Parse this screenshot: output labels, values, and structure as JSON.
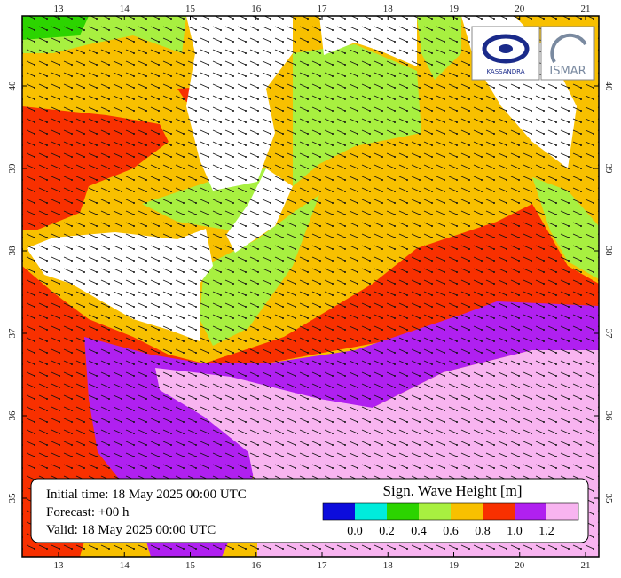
{
  "map": {
    "lon_ticks": [
      13,
      14,
      15,
      16,
      17,
      18,
      19,
      20,
      21
    ],
    "lat_ticks": [
      35,
      36,
      37,
      38,
      39,
      40
    ],
    "info": {
      "initial": "Initial time: 18 May 2025 00:00 UTC",
      "forecast": "Forecast: +00 h",
      "valid": "Valid: 18 May 2025 00:00 UTC"
    },
    "legend": {
      "title": "Sign. Wave Height [m]",
      "colors": [
        "#0c0cdc",
        "#00ecdc",
        "#2cd400",
        "#a8f040",
        "#f8c000",
        "#f83000",
        "#b020f0",
        "#f8b4f0"
      ],
      "labels": [
        "0.0",
        "0.2",
        "0.4",
        "0.6",
        "0.8",
        "1.0",
        "1.2"
      ]
    },
    "logos": [
      "KASSANDRA",
      "ISMAR"
    ]
  }
}
